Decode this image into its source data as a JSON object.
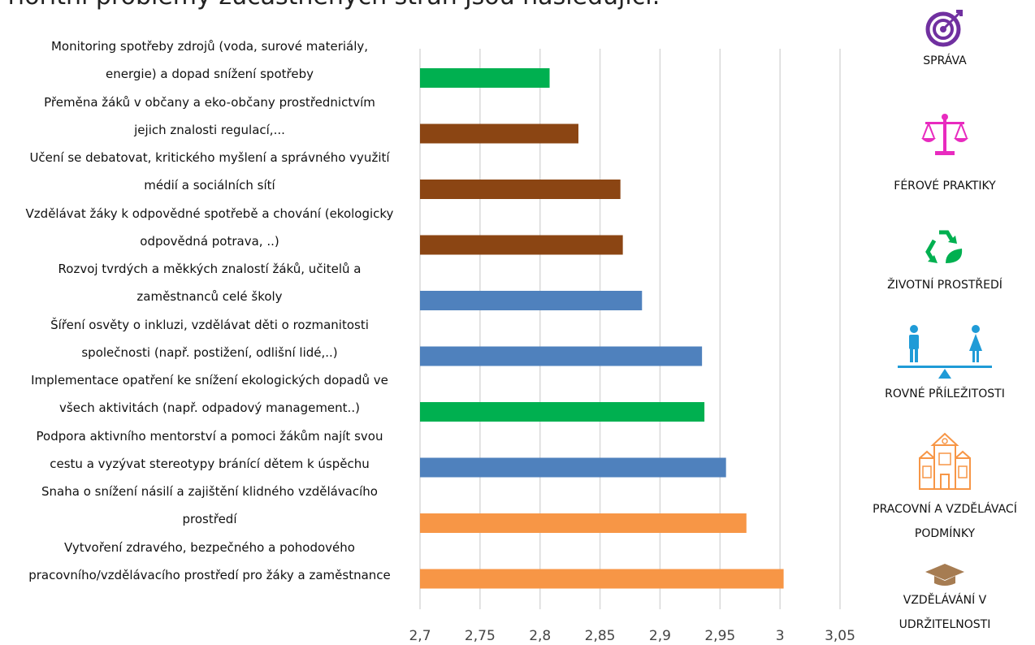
{
  "page": {
    "title": "Prioritní problémy zúčastněných stran jsou následující:"
  },
  "colors": {
    "sprava": "#00b050",
    "ferove": "#8b4513",
    "prostredi": "#4f81bd",
    "prilezitosti": "#4f81bd",
    "podminky": "#f79646",
    "vzdelavani": "#f79646",
    "grid": "#d9d9d9"
  },
  "chart_data": {
    "type": "bar",
    "orientation": "horizontal",
    "categories": [
      [
        "Monitoring spotřeby zdrojů (voda, surové materiály,",
        "energie) a dopad snížení spotřeby"
      ],
      [
        "Přeměna žáků v občany a eko-občany prostřednictvím",
        "jejich znalosti regulací,..."
      ],
      [
        "Učení se debatovat, kritického myšlení a správného využití",
        "médií a sociálních sítí"
      ],
      [
        "Vzdělávat žáky k odpovědné spotřebě a chování (ekologicky",
        "odpovědná potrava, ..)"
      ],
      [
        "Rozvoj tvrdých a měkkých znalostí žáků, učitelů a",
        "zaměstnanců celé školy"
      ],
      [
        "Šíření osvěty o inkluzi, vzdělávat děti o rozmanitosti",
        "společnosti (např. postižení, odlišní lidé,..)"
      ],
      [
        "Implementace opatření ke snížení ekologických dopadů ve",
        "všech aktivitách (např. odpadový management..)"
      ],
      [
        "Podpora aktivního mentorství a pomoci žákům najít svou",
        "cestu a vyzývat stereotypy bránící dětem k úspěchu"
      ],
      [
        "Snaha o snížení násilí a zajištění klidného vzdělávacího",
        "prostředí"
      ],
      [
        "Vytvoření zdravého, bezpečného a pohodového",
        "pracovního/vzdělávacího prostředí pro žáky a zaměstnance"
      ]
    ],
    "values": [
      2.808,
      2.832,
      2.867,
      2.869,
      2.885,
      2.935,
      2.937,
      2.955,
      2.972,
      3.003
    ],
    "bar_colors": [
      "#00b050",
      "#8b4513",
      "#8b4513",
      "#8b4513",
      "#4f81bd",
      "#4f81bd",
      "#00b050",
      "#4f81bd",
      "#f79646",
      "#f79646"
    ],
    "xlim": [
      2.7,
      3.05
    ],
    "xticks": [
      "2,7",
      "2,75",
      "2,8",
      "2,85",
      "2,9",
      "2,95",
      "3",
      "3,05"
    ],
    "xtick_values": [
      2.7,
      2.75,
      2.8,
      2.85,
      2.9,
      2.95,
      3.0,
      3.05
    ],
    "grid": true,
    "legend_placement": "right"
  },
  "legend": [
    {
      "label": "SPRÁVA",
      "icon": "target-icon",
      "color": "#7030a0"
    },
    {
      "label": "FÉROVÉ PRAKTIKY",
      "icon": "scales-icon",
      "color": "#e82bbf"
    },
    {
      "label": "ŽIVOTNÍ PROSTŘEDÍ",
      "icon": "recycle-icon",
      "color": "#00b050"
    },
    {
      "label": "ROVNÉ PŘÍLEŽITOSTI",
      "icon": "equality-icon",
      "color": "#1f9bd7"
    },
    {
      "label": "PRACOVNÍ A VZDĚLÁVACÍ PODMÍNKY",
      "lines": [
        "PRACOVNÍ A VZDĚLÁVACÍ",
        "PODMÍNKY"
      ],
      "icon": "school-building-icon",
      "color": "#f79646"
    },
    {
      "label": "VZDĚLÁVÁNÍ V UDRŽITELNOSTI",
      "lines": [
        "VZDĚLÁVÁNÍ V",
        "UDRŽITELNOSTI"
      ],
      "icon": "graduation-cap-icon",
      "color": "#a67c52"
    }
  ]
}
